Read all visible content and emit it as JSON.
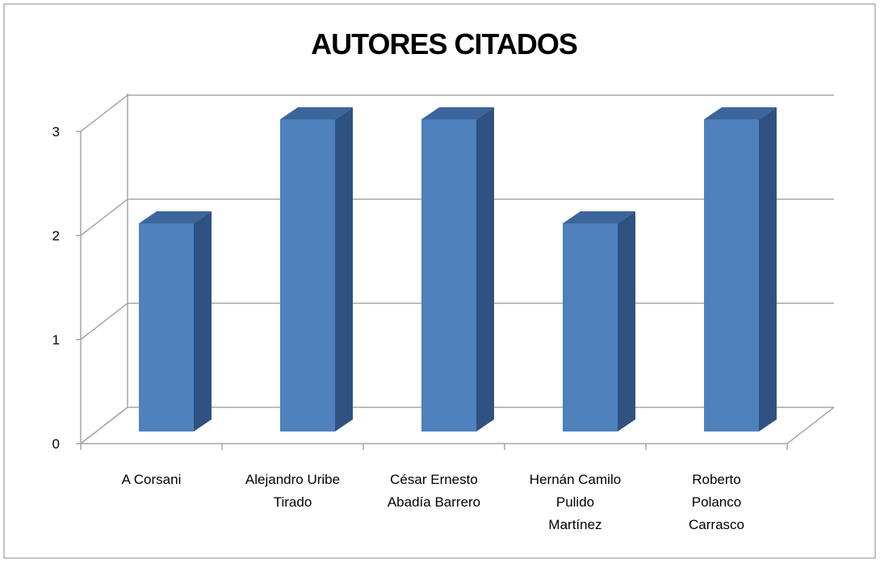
{
  "chart_data": {
    "type": "bar3d",
    "title": "AUTORES CITADOS",
    "categories": [
      "A Corsani",
      "Alejandro Uribe\nTirado",
      "César Ernesto\nAbadía Barrero",
      "Hernán Camilo\nPulido\nMartínez",
      "Roberto\nPolanco\nCarrasco"
    ],
    "values": [
      2,
      3,
      3,
      2,
      3
    ],
    "color": "#4f81bd",
    "ylim": [
      0,
      3
    ],
    "yticks": [
      0,
      1,
      2,
      3
    ],
    "grid": true
  }
}
